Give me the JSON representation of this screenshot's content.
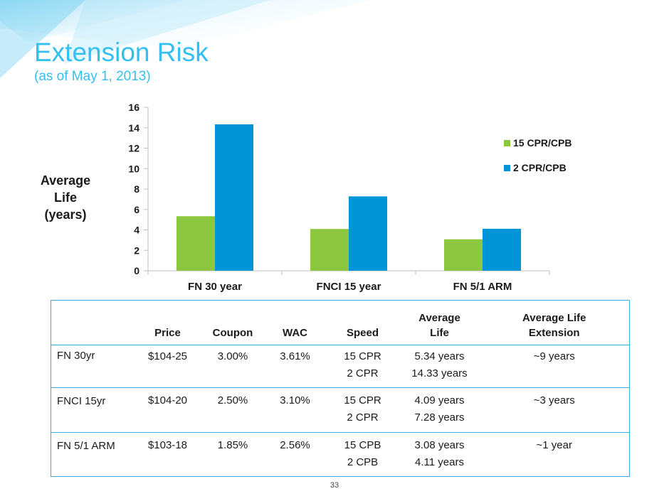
{
  "header": {
    "title": "Extension Risk",
    "subtitle": "(as of May 1, 2013)"
  },
  "chart_data": {
    "type": "bar",
    "title": "",
    "ylabel": "Average Life (years)",
    "xlabel": "",
    "categories": [
      "FN 30 year",
      "FNCI 15 year",
      "FN 5/1 ARM"
    ],
    "series": [
      {
        "name": "15 CPR/CPB",
        "color": "#8dc63f",
        "values": [
          5.34,
          4.09,
          3.08
        ]
      },
      {
        "name": "2 CPR/CPB",
        "color": "#0095d6",
        "values": [
          14.33,
          7.28,
          4.11
        ]
      }
    ],
    "ylim": [
      0,
      16
    ],
    "yticks": [
      "0",
      "2",
      "4",
      "6",
      "8",
      "10",
      "12",
      "14",
      "16"
    ],
    "grid": false,
    "legend": "right"
  },
  "ylabel_lines": [
    "Average",
    "Life",
    "(years)"
  ],
  "table": {
    "headers": [
      "",
      "Price",
      "Coupon",
      "WAC",
      "Speed",
      "Average Life",
      "Average Life Extension"
    ],
    "rows": [
      {
        "name": "FN 30yr",
        "price": "$104-25",
        "coupon": "3.00%",
        "wac": "3.61%",
        "speed": [
          "15 CPR",
          "2 CPR"
        ],
        "life": [
          "5.34 years",
          "14.33 years"
        ],
        "extension": "~9 years"
      },
      {
        "name": "FNCI 15yr",
        "price": "$104-20",
        "coupon": "2.50%",
        "wac": "3.10%",
        "speed": [
          "15 CPR",
          "2 CPR"
        ],
        "life": [
          "4.09 years",
          "7.28 years"
        ],
        "extension": "~3 years"
      },
      {
        "name": "FN 5/1 ARM",
        "price": "$103-18",
        "coupon": "1.85%",
        "wac": "2.56%",
        "speed": [
          "15 CPB",
          "2 CPB"
        ],
        "life": [
          "3.08 years",
          "4.11 years"
        ],
        "extension": "~1 year"
      }
    ]
  },
  "footer": {
    "page_number": "33"
  }
}
